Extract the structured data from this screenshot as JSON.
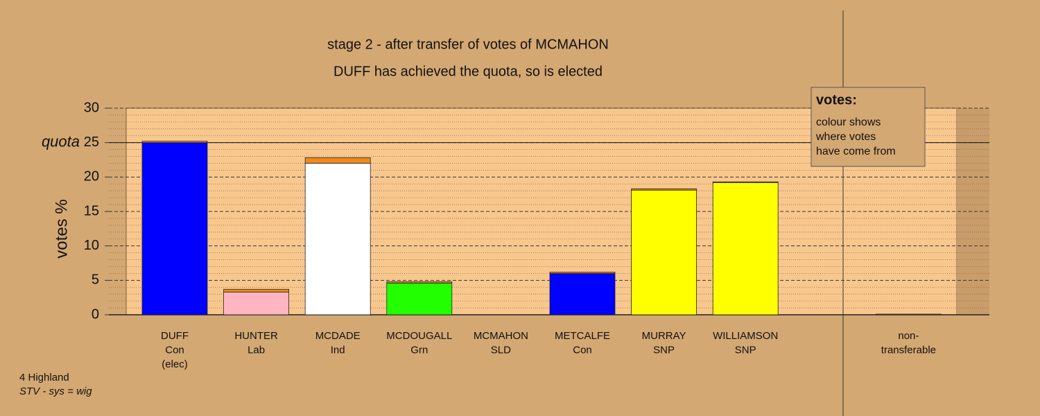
{
  "chart_data": {
    "type": "stacked-bar",
    "title": "stage 2 - after transfer of votes of MCMAHON",
    "subtitle": "DUFF has achieved the quota, so is elected",
    "ylabel": "votes %",
    "categories": [
      [
        "DUFF",
        "Con",
        "(elec)"
      ],
      [
        "HUNTER",
        "Lab"
      ],
      [
        "MCDADE",
        "Ind"
      ],
      [
        "MCDOUGALL",
        "Grn"
      ],
      [
        "MCMAHON",
        "SLD"
      ],
      [
        "METCALFE",
        "Con"
      ],
      [
        "MURRAY",
        "SNP"
      ],
      [
        "WILLIAMSON",
        "SNP"
      ],
      null,
      [
        "non-",
        "transferable"
      ]
    ],
    "series": [
      {
        "colors": [
          "#0000ff",
          "#ffb6c1",
          "#ffffff",
          "#22ff00",
          "#ff8c00",
          "#0000ff",
          "#ffff00",
          "#ffff00",
          null,
          "#555555"
        ],
        "values": [
          25.0,
          3.3,
          22.0,
          4.6,
          0,
          6.0,
          18.1,
          19.2,
          null,
          0
        ]
      },
      {
        "color": "#f08a1c",
        "values": [
          0.2,
          0.4,
          0.8,
          0.2,
          0,
          0.2,
          0.2,
          0.1,
          null,
          0.1
        ]
      }
    ],
    "quota": {
      "value": 25,
      "label": "quota"
    },
    "ylim": [
      0,
      30
    ],
    "yticks": [
      0,
      5,
      10,
      15,
      20,
      25,
      30
    ],
    "minor_yticks": [
      1,
      2,
      3,
      4,
      6,
      7,
      8,
      9,
      11,
      12,
      13,
      14,
      16,
      17,
      18,
      19,
      21,
      22,
      23,
      24,
      26,
      27,
      28,
      29
    ],
    "grid": true,
    "legend": {
      "title": "votes:",
      "lines": [
        "colour shows",
        "where votes",
        "have come from"
      ]
    },
    "footer": [
      "4 Highland",
      "STV - sys = wig"
    ]
  }
}
